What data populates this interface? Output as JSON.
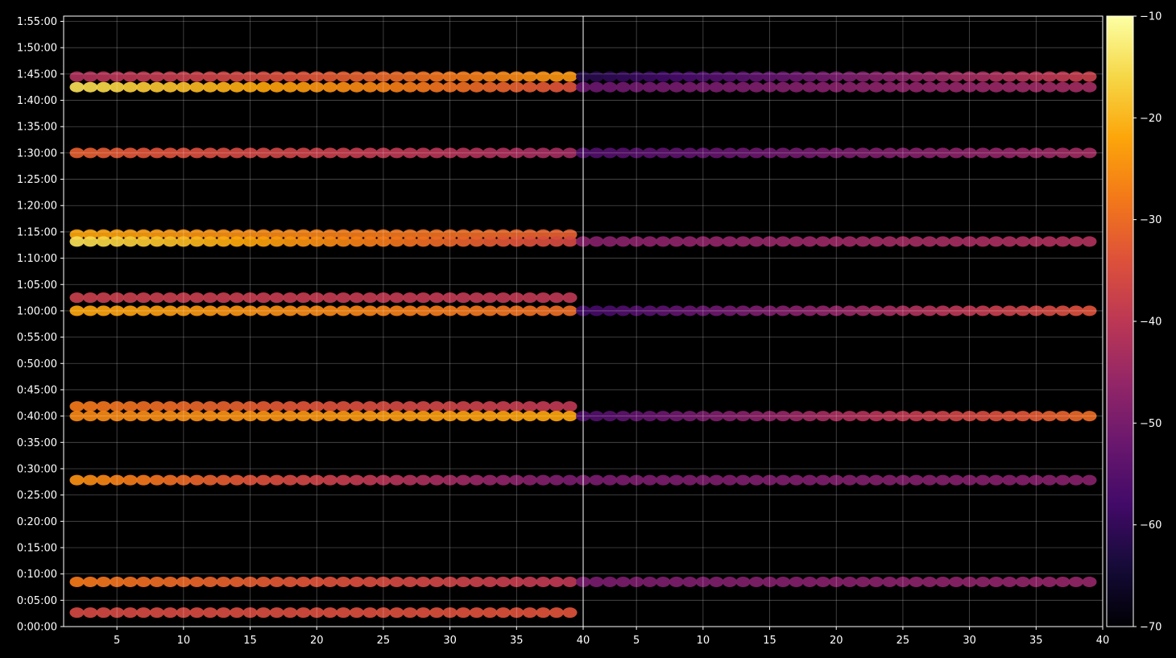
{
  "chart_data": {
    "type": "heatmap",
    "title": "",
    "xlabel": "",
    "ylabel": "",
    "colormap": "inferno",
    "background": "#000000",
    "grid": true,
    "panels": [
      {
        "xlim": [
          1,
          40
        ],
        "xticks": [
          5,
          10,
          15,
          20,
          25,
          30,
          35,
          40
        ],
        "xtick_labels": [
          "5",
          "10",
          "15",
          "20",
          "25",
          "30",
          "35",
          "40"
        ]
      },
      {
        "xlim": [
          1,
          40
        ],
        "xticks": [
          5,
          10,
          15,
          20,
          25,
          30,
          35,
          40
        ],
        "xtick_labels": [
          "5",
          "10",
          "15",
          "20",
          "25",
          "30",
          "35",
          "40"
        ]
      }
    ],
    "ylim_seconds": [
      0,
      6960
    ],
    "yticks_seconds": [
      0,
      300,
      600,
      900,
      1200,
      1500,
      1800,
      2100,
      2400,
      2700,
      3000,
      3300,
      3600,
      3900,
      4200,
      4500,
      4800,
      5100,
      5400,
      5700,
      6000,
      6300,
      6600,
      6900
    ],
    "ytick_labels": [
      "0:00:00",
      "0:05:00",
      "0:10:00",
      "0:15:00",
      "0:20:00",
      "0:25:00",
      "0:30:00",
      "0:35:00",
      "0:40:00",
      "0:45:00",
      "0:50:00",
      "0:55:00",
      "1:00:00",
      "1:05:00",
      "1:10:00",
      "1:15:00",
      "1:20:00",
      "1:25:00",
      "1:30:00",
      "1:35:00",
      "1:40:00",
      "1:45:00",
      "1:50:00",
      "1:55:00"
    ],
    "colorbar": {
      "min": -70,
      "max": -10,
      "ticks": [
        -10,
        -20,
        -30,
        -40,
        -50,
        -60,
        -70
      ],
      "tick_labels": [
        "−10",
        "−20",
        "−30",
        "−40",
        "−50",
        "−60",
        "−70"
      ]
    },
    "bands": [
      {
        "panel": 0,
        "y": 6270,
        "x_from": 2,
        "x_to": 39,
        "v_start": -42,
        "v_end": -24
      },
      {
        "panel": 0,
        "y": 6150,
        "x_from": 2,
        "x_to": 39,
        "v_start": -15,
        "v_end": -34
      },
      {
        "panel": 0,
        "y": 5400,
        "x_from": 2,
        "x_to": 39,
        "v_start": -32,
        "v_end": -44
      },
      {
        "panel": 0,
        "y": 4470,
        "x_from": 2,
        "x_to": 39,
        "v_start": -22,
        "v_end": -32
      },
      {
        "panel": 0,
        "y": 4390,
        "x_from": 2,
        "x_to": 39,
        "v_start": -15,
        "v_end": -36
      },
      {
        "panel": 0,
        "y": 3750,
        "x_from": 2,
        "x_to": 39,
        "v_start": -38,
        "v_end": -40
      },
      {
        "panel": 0,
        "y": 3600,
        "x_from": 2,
        "x_to": 39,
        "v_start": -22,
        "v_end": -30
      },
      {
        "panel": 0,
        "y": 2510,
        "x_from": 2,
        "x_to": 39,
        "v_start": -28,
        "v_end": -40
      },
      {
        "panel": 0,
        "y": 2400,
        "x_from": 2,
        "x_to": 39,
        "v_start": -26,
        "v_end": -22
      },
      {
        "panel": 0,
        "y": 1670,
        "x_from": 2,
        "x_to": 39,
        "v_start": -25,
        "v_end": -50
      },
      {
        "panel": 0,
        "y": 510,
        "x_from": 2,
        "x_to": 39,
        "v_start": -28,
        "v_end": -40
      },
      {
        "panel": 0,
        "y": 160,
        "x_from": 2,
        "x_to": 39,
        "v_start": -36,
        "v_end": -34
      },
      {
        "panel": 1,
        "y": 6270,
        "x_from": 1,
        "x_to": 39,
        "v_start": -62,
        "v_end": -38
      },
      {
        "panel": 1,
        "y": 6150,
        "x_from": 1,
        "x_to": 39,
        "v_start": -52,
        "v_end": -44
      },
      {
        "panel": 1,
        "y": 5400,
        "x_from": 1,
        "x_to": 39,
        "v_start": -56,
        "v_end": -44
      },
      {
        "panel": 1,
        "y": 4390,
        "x_from": 1,
        "x_to": 39,
        "v_start": -48,
        "v_end": -42
      },
      {
        "panel": 1,
        "y": 3600,
        "x_from": 1,
        "x_to": 39,
        "v_start": -58,
        "v_end": -34
      },
      {
        "panel": 1,
        "y": 2400,
        "x_from": 1,
        "x_to": 39,
        "v_start": -56,
        "v_end": -30
      },
      {
        "panel": 1,
        "y": 1670,
        "x_from": 1,
        "x_to": 39,
        "v_start": -50,
        "v_end": -48
      },
      {
        "panel": 1,
        "y": 510,
        "x_from": 1,
        "x_to": 39,
        "v_start": -50,
        "v_end": -46
      }
    ]
  }
}
